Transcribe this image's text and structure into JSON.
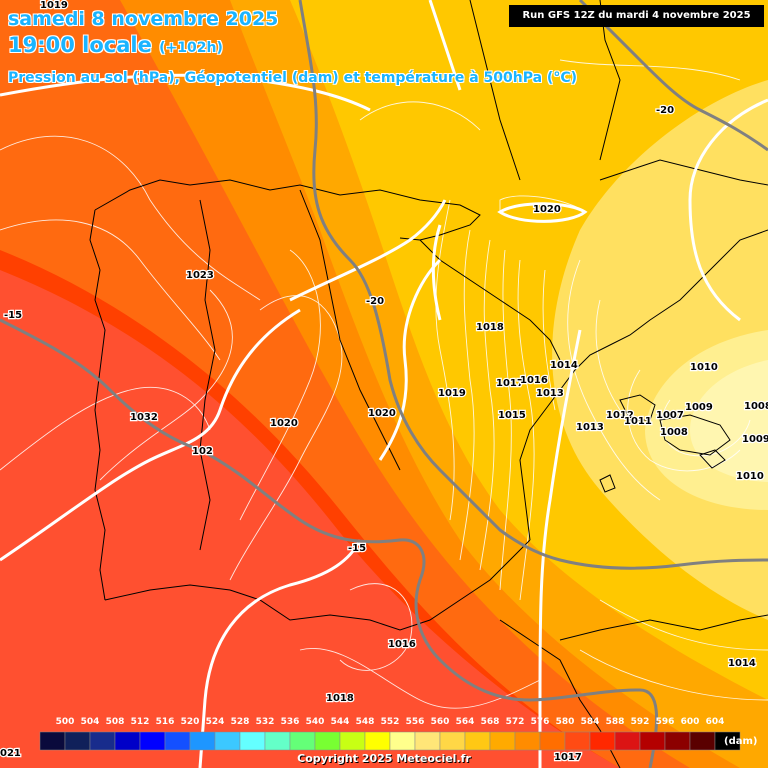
{
  "header": {
    "date": "samedi 8 novembre 2025",
    "time": "19:00 locale",
    "offset": "(+102h)",
    "subtitle": "Pression au sol (hPa), Géopotentiel (dam) et température à 500hPa (°C)",
    "run": "Run GFS 12Z du mardi 4 novembre 2025"
  },
  "isobar_labels": [
    "1019",
    "1023",
    "1032",
    "1020",
    "102",
    "1020",
    "1018",
    "1019",
    "1017",
    "1016",
    "1014",
    "1013",
    "1015",
    "1020",
    "1012",
    "1011",
    "1007",
    "1009",
    "1008",
    "1010",
    "1008",
    "1009",
    "1010",
    "1013",
    "1016",
    "1018",
    "1014",
    "1017",
    "021"
  ],
  "temperature_labels": [
    "-15",
    "-20",
    "-20",
    "-15"
  ],
  "legend": {
    "ticks": [
      "500",
      "504",
      "508",
      "512",
      "516",
      "520",
      "524",
      "528",
      "532",
      "536",
      "540",
      "544",
      "548",
      "552",
      "556",
      "560",
      "564",
      "568",
      "572",
      "576",
      "580",
      "584",
      "588",
      "592",
      "596",
      "600",
      "604"
    ],
    "colors": [
      "#0a0a3c",
      "#10205a",
      "#182c8c",
      "#0000c8",
      "#0000ff",
      "#1450ff",
      "#1e96ff",
      "#3cc8ff",
      "#64ffff",
      "#64ffc8",
      "#64ff78",
      "#78ff32",
      "#c8ff14",
      "#ffff00",
      "#ffff8c",
      "#ffe678",
      "#ffd746",
      "#ffc814",
      "#ffaa00",
      "#ff8c00",
      "#ff6e00",
      "#ff4b14",
      "#ff2800",
      "#dc1414",
      "#b40000",
      "#8c0000",
      "#5a0000",
      "#000000"
    ],
    "unit": "(dam)"
  },
  "copyright": "Copyright 2025 Meteociel.fr"
}
